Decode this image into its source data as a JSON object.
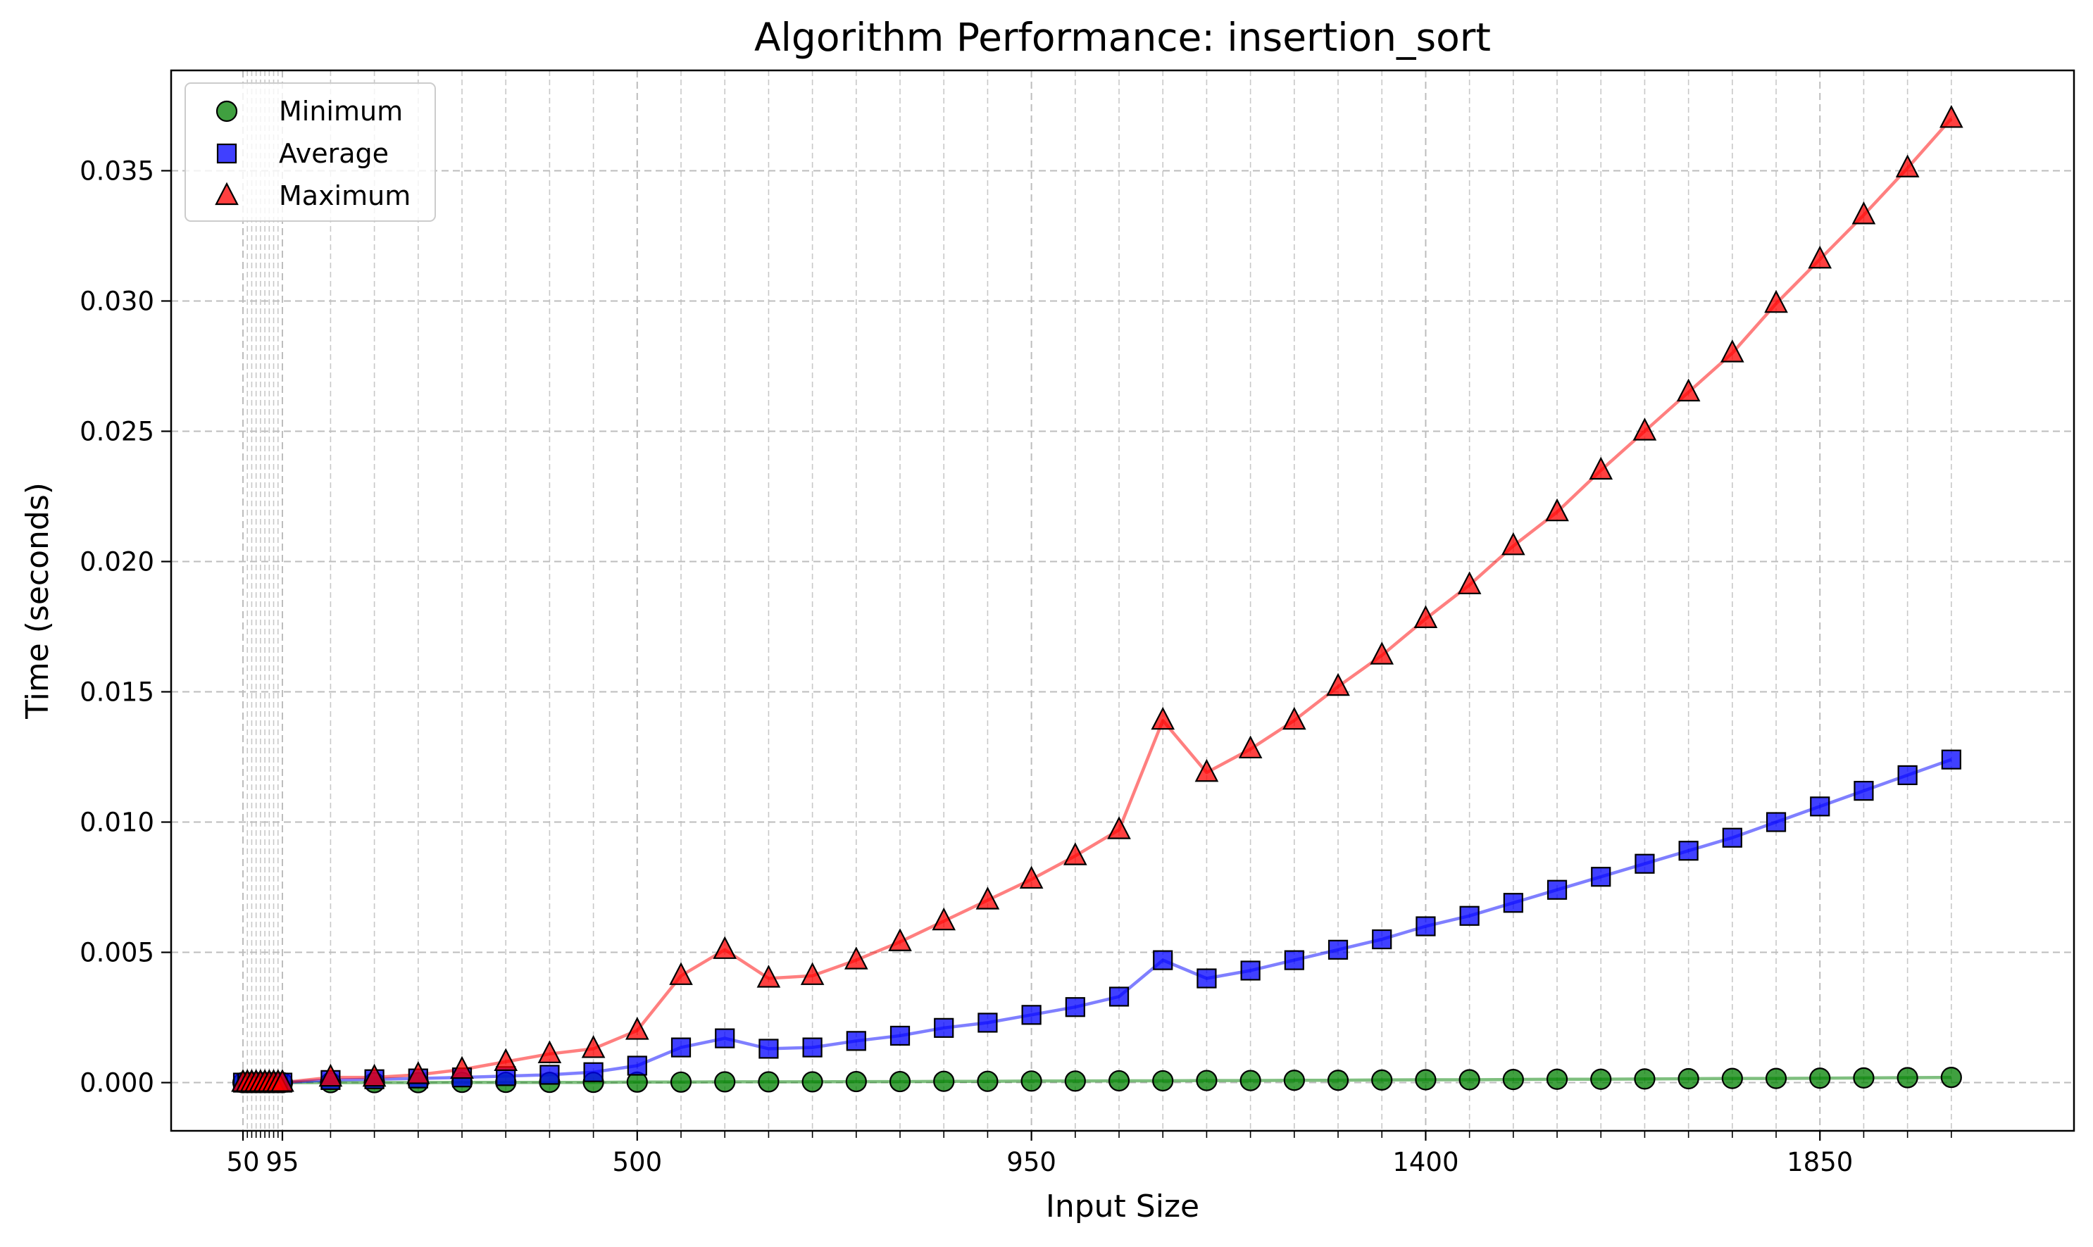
{
  "chart_data": {
    "type": "line",
    "title": "Algorithm Performance: insertion_sort",
    "xlabel": "Input Size",
    "ylabel": "Time (seconds)",
    "grid": true,
    "legend_position": "top-left",
    "xlim": [
      -32,
      2140
    ],
    "ylim": [
      -0.00185,
      0.03885
    ],
    "x_major_ticks": [
      50,
      95,
      500,
      950,
      1400,
      1850
    ],
    "x_minor_ticks": [
      55,
      60,
      65,
      70,
      75,
      80,
      85,
      90,
      150,
      200,
      250,
      300,
      350,
      400,
      450,
      550,
      600,
      650,
      700,
      750,
      800,
      850,
      900,
      1000,
      1050,
      1100,
      1150,
      1200,
      1250,
      1300,
      1350,
      1450,
      1500,
      1550,
      1600,
      1650,
      1700,
      1750,
      1800,
      1900,
      1950,
      2000
    ],
    "y_ticks": [
      0.0,
      0.005,
      0.01,
      0.015,
      0.02,
      0.025,
      0.03,
      0.035
    ],
    "y_tick_labels": [
      "0.000",
      "0.005",
      "0.010",
      "0.015",
      "0.020",
      "0.025",
      "0.030",
      "0.035"
    ],
    "x": [
      50,
      55,
      60,
      65,
      70,
      75,
      80,
      85,
      90,
      95,
      150,
      200,
      250,
      300,
      350,
      400,
      450,
      500,
      550,
      600,
      650,
      700,
      750,
      800,
      850,
      900,
      950,
      1000,
      1050,
      1100,
      1150,
      1200,
      1250,
      1300,
      1350,
      1400,
      1450,
      1500,
      1550,
      1600,
      1650,
      1700,
      1750,
      1800,
      1850,
      1900,
      1950,
      2000
    ],
    "series": [
      {
        "name": "Minimum",
        "color": "#008000",
        "marker": "circle",
        "values": [
          0.0,
          0.0,
          0.0,
          0.0,
          0.0,
          0.0,
          0.0,
          0.0,
          0.0,
          0.0,
          0.0,
          0.0,
          0.0,
          1e-05,
          1e-05,
          1e-05,
          1e-05,
          2e-05,
          2e-05,
          3e-05,
          3e-05,
          3e-05,
          4e-05,
          4e-05,
          5e-05,
          5e-05,
          6e-05,
          6e-05,
          7e-05,
          7e-05,
          8e-05,
          8e-05,
          9e-05,
          9e-05,
          0.0001,
          0.00011,
          0.00011,
          0.00012,
          0.00013,
          0.00013,
          0.00014,
          0.00015,
          0.00016,
          0.00016,
          0.00017,
          0.00018,
          0.00019,
          0.0002
        ]
      },
      {
        "name": "Average",
        "color": "#0000ff",
        "marker": "square",
        "values": [
          0.0,
          0.0,
          0.0,
          0.0,
          0.0,
          0.0,
          0.0,
          0.0,
          0.0,
          0.0,
          0.0001,
          0.00013,
          0.00016,
          0.0002,
          0.00025,
          0.0003,
          0.0004,
          0.00065,
          0.00135,
          0.0017,
          0.0013,
          0.00135,
          0.0016,
          0.0018,
          0.0021,
          0.0023,
          0.0026,
          0.0029,
          0.0033,
          0.0047,
          0.004,
          0.0043,
          0.0047,
          0.0051,
          0.0055,
          0.006,
          0.0064,
          0.0069,
          0.0074,
          0.0079,
          0.0084,
          0.0089,
          0.0094,
          0.01,
          0.0106,
          0.0112,
          0.0118,
          0.0124
        ]
      },
      {
        "name": "Maximum",
        "color": "#ff0000",
        "marker": "triangle",
        "values": [
          0.0,
          0.0,
          0.0,
          0.0,
          0.0,
          0.0,
          0.0,
          0.0,
          0.0,
          0.0,
          0.0002,
          0.0002,
          0.0003,
          0.0005,
          0.0008,
          0.0011,
          0.0013,
          0.002,
          0.0041,
          0.0051,
          0.004,
          0.0041,
          0.0047,
          0.0054,
          0.0062,
          0.007,
          0.0078,
          0.0087,
          0.0097,
          0.0139,
          0.0119,
          0.0128,
          0.0139,
          0.0152,
          0.0164,
          0.0178,
          0.0191,
          0.0206,
          0.0219,
          0.0235,
          0.025,
          0.0265,
          0.028,
          0.0299,
          0.0316,
          0.0333,
          0.0351,
          0.037
        ]
      }
    ]
  }
}
